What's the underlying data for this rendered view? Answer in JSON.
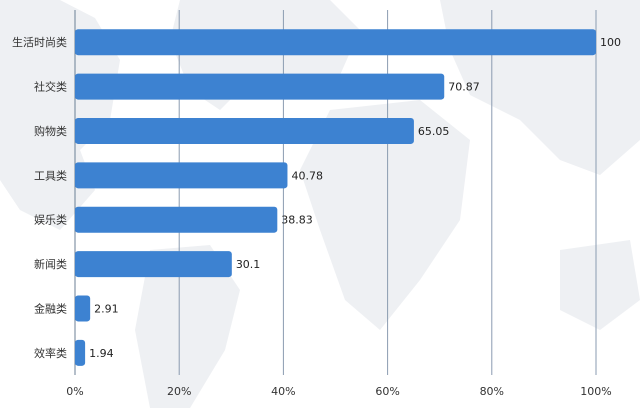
{
  "chart_data": {
    "type": "bar",
    "orientation": "horizontal",
    "title": "",
    "xlabel": "",
    "ylabel": "",
    "categories": [
      "生活时尚类",
      "社交类",
      "购物类",
      "工具类",
      "娱乐类",
      "新闻类",
      "金融类",
      "效率类"
    ],
    "values": [
      100,
      70.87,
      65.05,
      40.78,
      38.83,
      30.1,
      2.91,
      1.94
    ],
    "value_labels": [
      "100",
      "70.87",
      "65.05",
      "40.78",
      "38.83",
      "30.1",
      "2.91",
      "1.94"
    ],
    "xlim": [
      0,
      100
    ],
    "xticks": [
      0,
      20,
      40,
      60,
      80,
      100
    ],
    "xtick_labels": [
      "0%",
      "20%",
      "40%",
      "60%",
      "80%",
      "100%"
    ],
    "grid": true,
    "bar_color": "#3d82d1",
    "grid_color": "#8a9bb0",
    "background_decoration": "world-map"
  }
}
